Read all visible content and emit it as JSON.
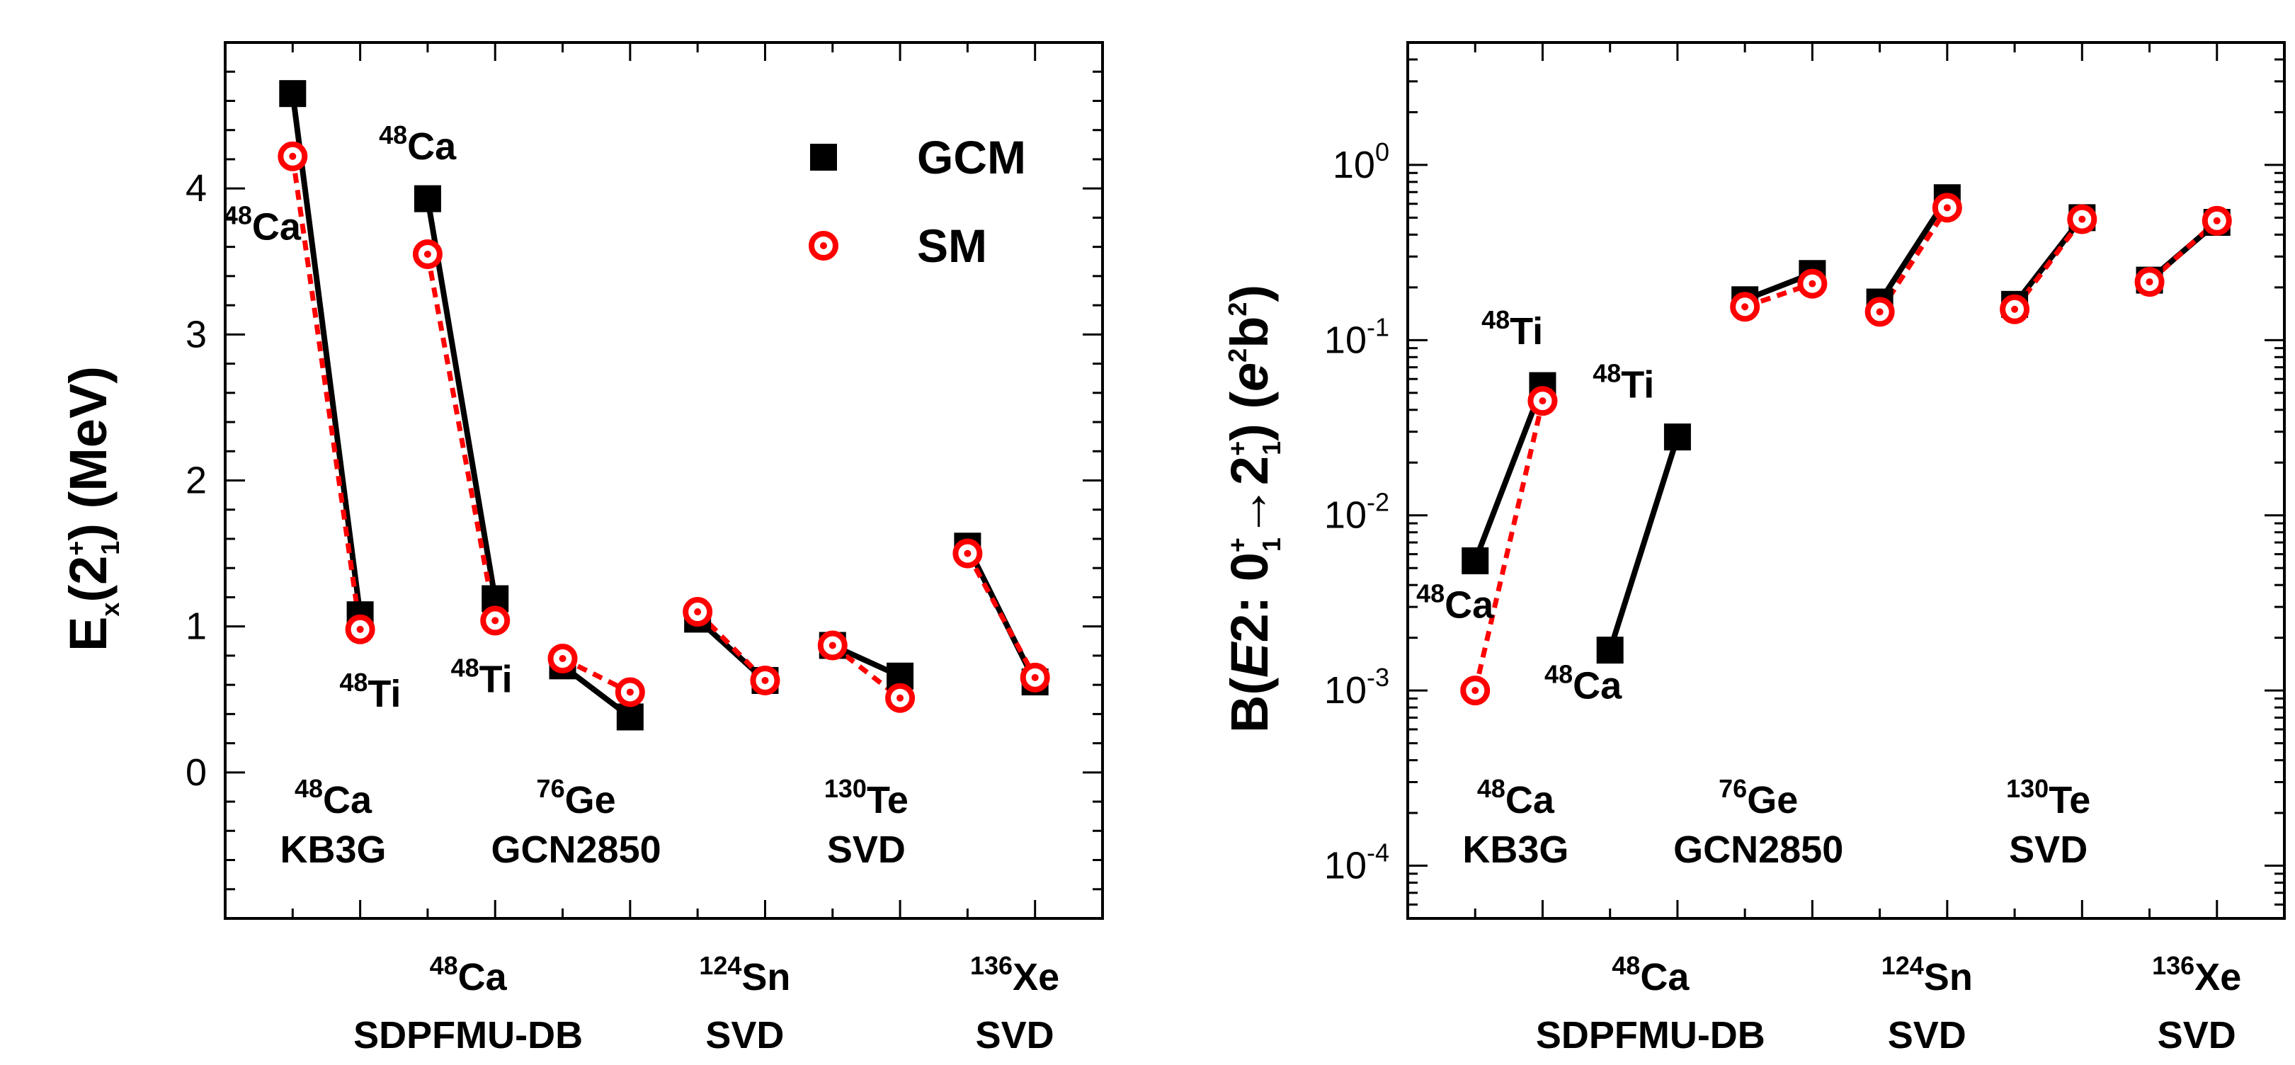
{
  "chart_data": [
    {
      "type": "line",
      "panel": "left",
      "ylabel": {
        "main": "E",
        "sub": "x",
        "paren_open": "(2",
        "sup": "+",
        "sub2": "1",
        "rest": ") (MeV)"
      },
      "ylim": [
        -1,
        5
      ],
      "yticks": [
        0,
        1,
        2,
        3,
        4
      ],
      "minor_step": 0.2,
      "xlim": [
        0,
        13
      ],
      "legend": {
        "location": "top-right",
        "entries": [
          {
            "label": "GCM",
            "marker": "filled-square"
          },
          {
            "label": "SM",
            "marker": "open-circle"
          }
        ]
      },
      "series": [
        {
          "name": "GCM",
          "color": "#000000",
          "style": "solid",
          "segments": [
            [
              {
                "x": 1,
                "y": 4.65
              },
              {
                "x": 2,
                "y": 1.08
              }
            ],
            [
              {
                "x": 3,
                "y": 3.93
              },
              {
                "x": 4,
                "y": 1.19
              }
            ],
            [
              {
                "x": 5,
                "y": 0.73
              },
              {
                "x": 6,
                "y": 0.38
              }
            ],
            [
              {
                "x": 7,
                "y": 1.05
              },
              {
                "x": 8,
                "y": 0.63
              }
            ],
            [
              {
                "x": 9,
                "y": 0.87
              },
              {
                "x": 10,
                "y": 0.66
              }
            ],
            [
              {
                "x": 11,
                "y": 1.55
              },
              {
                "x": 12,
                "y": 0.62
              }
            ]
          ]
        },
        {
          "name": "SM",
          "color": "#ff0000",
          "style": "dashed",
          "segments": [
            [
              {
                "x": 1,
                "y": 4.22
              },
              {
                "x": 2,
                "y": 0.98
              }
            ],
            [
              {
                "x": 3,
                "y": 3.55
              },
              {
                "x": 4,
                "y": 1.04
              }
            ],
            [
              {
                "x": 5,
                "y": 0.78
              },
              {
                "x": 6,
                "y": 0.55
              }
            ],
            [
              {
                "x": 7,
                "y": 1.1
              },
              {
                "x": 8,
                "y": 0.63
              }
            ],
            [
              {
                "x": 9,
                "y": 0.87
              },
              {
                "x": 10,
                "y": 0.51
              }
            ],
            [
              {
                "x": 11,
                "y": 1.5
              },
              {
                "x": 12,
                "y": 0.65
              }
            ]
          ]
        }
      ],
      "annotations": [
        {
          "mass": "48",
          "element": "Ca",
          "x": 0.55,
          "y": 3.65
        },
        {
          "mass": "48",
          "element": "Ti",
          "x": 2.15,
          "y": 0.45
        },
        {
          "mass": "48",
          "element": "Ca",
          "x": 2.85,
          "y": 4.2
        },
        {
          "mass": "48",
          "element": "Ti",
          "x": 3.8,
          "y": 0.55
        }
      ],
      "groups_top": [
        {
          "mass": "48",
          "element": "Ca",
          "model": "KB3G",
          "x": 1.6
        },
        {
          "mass": "76",
          "element": "Ge",
          "model": "GCN2850",
          "x": 5.2
        },
        {
          "mass": "130",
          "element": "Te",
          "model": "SVD",
          "x": 9.5
        }
      ],
      "groups_bottom": [
        {
          "mass": "48",
          "element": "Ca",
          "model": "SDPFMU-DB",
          "x": 3.6
        },
        {
          "mass": "124",
          "element": "Sn",
          "model": "SVD",
          "x": 7.7
        },
        {
          "mass": "136",
          "element": "Xe",
          "model": "SVD",
          "x": 11.7
        }
      ]
    },
    {
      "type": "line",
      "panel": "right",
      "yscale": "log",
      "ylabel": {
        "B": "B(",
        "E2": "E",
        "two": "2: 0",
        "sup1": "+",
        "sub1": "1",
        "arrow": "→2",
        "sup2": "+",
        "sub2": "1",
        "close": ") (",
        "e": "e",
        "esup": "2",
        "b": "b",
        "bsup": "2",
        "end": ")"
      },
      "ylim": [
        5e-05,
        5
      ],
      "yticks": [
        {
          "base": "10",
          "exp": "0",
          "value": 1
        },
        {
          "base": "10",
          "exp": "-1",
          "value": 0.1
        },
        {
          "base": "10",
          "exp": "-2",
          "value": 0.01
        },
        {
          "base": "10",
          "exp": "-3",
          "value": 0.001
        },
        {
          "base": "10",
          "exp": "-4",
          "value": 0.0001
        }
      ],
      "xlim": [
        0,
        13
      ],
      "series": [
        {
          "name": "GCM",
          "color": "#000000",
          "style": "solid",
          "segments": [
            [
              {
                "x": 1,
                "y": 0.0055
              },
              {
                "x": 2,
                "y": 0.055
              }
            ],
            [
              {
                "x": 3,
                "y": 0.0017
              },
              {
                "x": 4,
                "y": 0.028
              }
            ],
            [
              {
                "x": 5,
                "y": 0.17
              },
              {
                "x": 6,
                "y": 0.24
              }
            ],
            [
              {
                "x": 7,
                "y": 0.165
              },
              {
                "x": 8,
                "y": 0.65
              }
            ],
            [
              {
                "x": 9,
                "y": 0.16
              },
              {
                "x": 10,
                "y": 0.5
              }
            ],
            [
              {
                "x": 11,
                "y": 0.22
              },
              {
                "x": 12,
                "y": 0.47
              }
            ]
          ]
        },
        {
          "name": "SM",
          "color": "#ff0000",
          "style": "dashed",
          "segments": [
            [
              {
                "x": 1,
                "y": 0.001
              },
              {
                "x": 2,
                "y": 0.045
              }
            ],
            [
              {
                "x": 5,
                "y": 0.155
              },
              {
                "x": 6,
                "y": 0.21
              }
            ],
            [
              {
                "x": 7,
                "y": 0.145
              },
              {
                "x": 8,
                "y": 0.57
              }
            ],
            [
              {
                "x": 9,
                "y": 0.15
              },
              {
                "x": 10,
                "y": 0.49
              }
            ],
            [
              {
                "x": 11,
                "y": 0.215
              },
              {
                "x": 12,
                "y": 0.48
              }
            ]
          ]
        }
      ],
      "annotations": [
        {
          "mass": "48",
          "element": "Ti",
          "x": 1.55,
          "y": 0.095
        },
        {
          "mass": "48",
          "element": "Ca",
          "x": 0.7,
          "y": 0.0026
        },
        {
          "mass": "48",
          "element": "Ti",
          "x": 3.2,
          "y": 0.047
        },
        {
          "mass": "48",
          "element": "Ca",
          "x": 2.6,
          "y": 0.0009
        }
      ],
      "groups_top": [
        {
          "mass": "48",
          "element": "Ca",
          "model": "KB3G",
          "x": 1.6
        },
        {
          "mass": "76",
          "element": "Ge",
          "model": "GCN2850",
          "x": 5.2
        },
        {
          "mass": "130",
          "element": "Te",
          "model": "SVD",
          "x": 9.5
        }
      ],
      "groups_bottom": [
        {
          "mass": "48",
          "element": "Ca",
          "model": "SDPFMU-DB",
          "x": 3.6
        },
        {
          "mass": "124",
          "element": "Sn",
          "model": "SVD",
          "x": 7.7
        },
        {
          "mass": "136",
          "element": "Xe",
          "model": "SVD",
          "x": 11.7
        }
      ]
    }
  ]
}
